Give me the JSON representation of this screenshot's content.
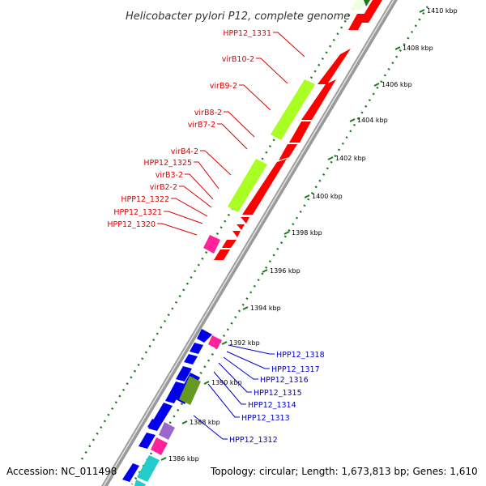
{
  "title": "Helicobacter pylori P12, complete genome",
  "footer": {
    "accession": "Accession: NC_011498",
    "topology": "Topology: circular; Length: 1,673,813 bp; Genes: 1,610"
  },
  "colors": {
    "backbone": "#999999",
    "tick": "#1a7a1a",
    "red_gene": "#ff0000",
    "blue_gene": "#0000ee",
    "lime_gene": "#aaff22",
    "olive_gene": "#669922",
    "magenta_gene": "#ff2299",
    "cyan_gene": "#22cccc",
    "purple_gene": "#9966cc",
    "red_label": "#dd0000",
    "blue_label": "#0000cc"
  },
  "ticks": [
    "1386 kbp",
    "1388 kbp",
    "1390 kbp",
    "1392 kbp",
    "1394 kbp",
    "1396 kbp",
    "1398 kbp",
    "1400 kbp",
    "1402 kbp",
    "1404 kbp",
    "1406 kbp",
    "1408 kbp",
    "1410 kbp"
  ],
  "red_labels": [
    "HPP12_1331",
    "virB10-2",
    "virB9-2",
    "virB8-2",
    "virB7-2",
    "virB4-2",
    "HPP12_1325",
    "virB3-2",
    "virB2-2",
    "HPP12_1322",
    "HPP12_1321",
    "HPP12_1320"
  ],
  "blue_labels": [
    "HPP12_1318",
    "HPP12_1317",
    "HPP12_1316",
    "HPP12_1315",
    "HPP12_1314",
    "HPP12_1313",
    "HPP12_1312"
  ]
}
